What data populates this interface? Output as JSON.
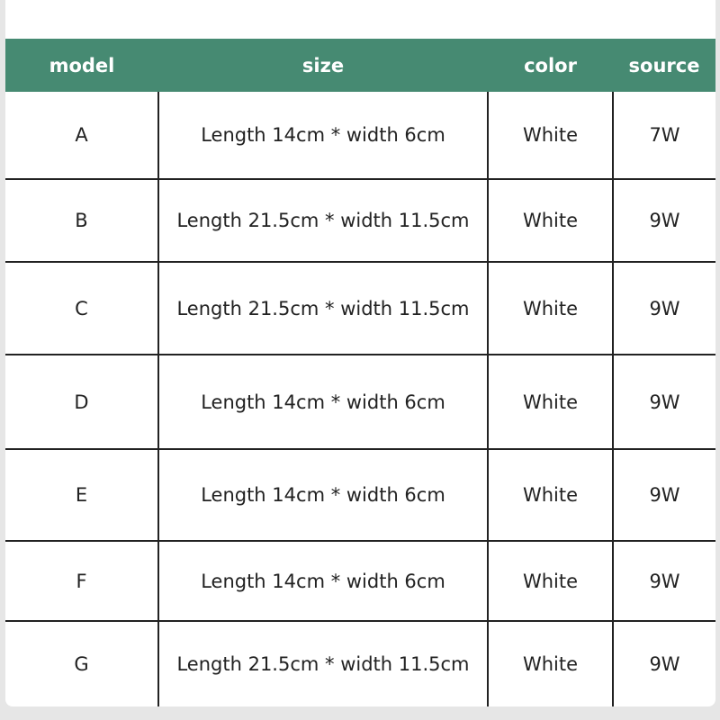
{
  "table": {
    "headers": [
      "model",
      "size",
      "color",
      "source"
    ],
    "rows": [
      [
        "A",
        "Length 14cm * width 6cm",
        "White",
        "7W"
      ],
      [
        "B",
        "Length 21.5cm * width 11.5cm",
        "White",
        "9W"
      ],
      [
        "C",
        "Length 21.5cm * width 11.5cm",
        "White",
        "9W"
      ],
      [
        "D",
        "Length 14cm * width 6cm",
        "White",
        "9W"
      ],
      [
        "E",
        "Length 14cm * width 6cm",
        "White",
        "9W"
      ],
      [
        "F",
        "Length 14cm * width 6cm",
        "White",
        "9W"
      ],
      [
        "G",
        "Length 21.5cm * width 11.5cm",
        "White",
        "9W"
      ]
    ],
    "header_color": "#468a72"
  }
}
